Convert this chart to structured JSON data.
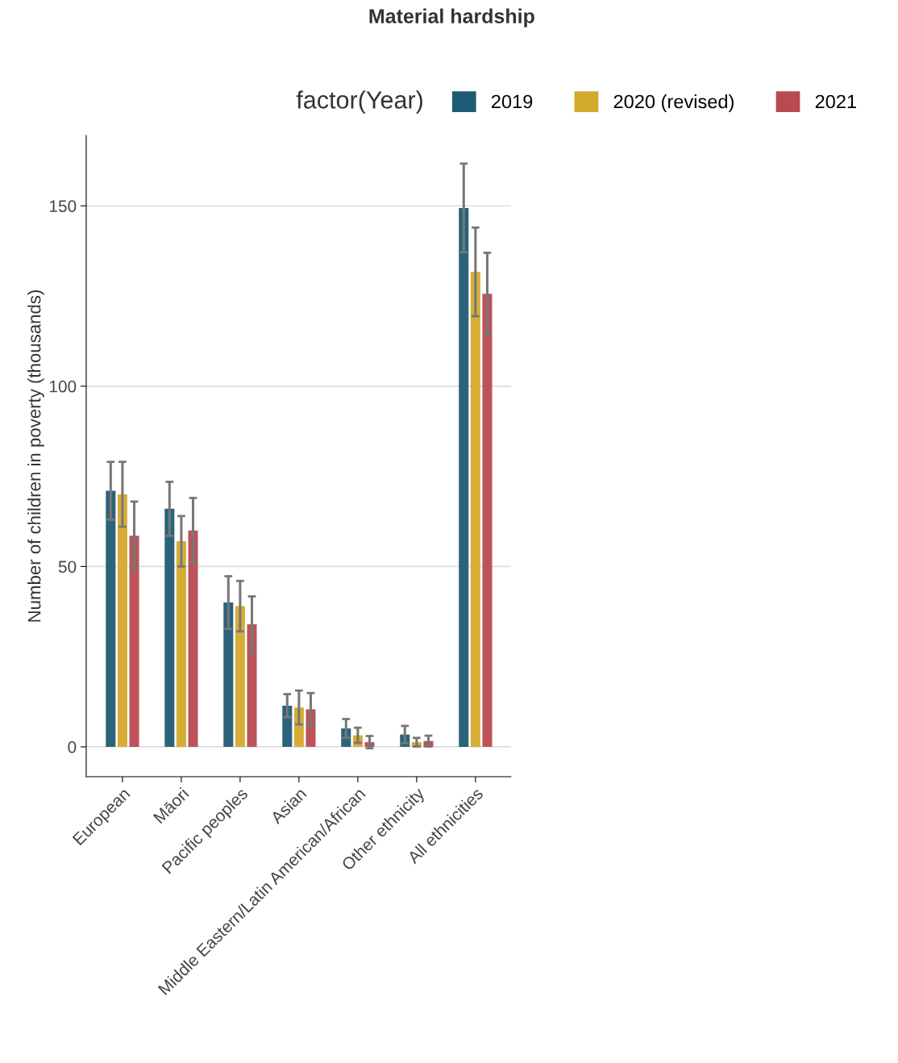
{
  "chart_data": {
    "type": "bar",
    "title": "Material hardship",
    "ylabel": "Number of children in poverty (thousands)",
    "legend_title": "factor(Year)",
    "categories": [
      "European",
      "Māori",
      "Pacific peoples",
      "Asian",
      "Middle Eastern/Latin American/African",
      "Other ethnicity",
      "All ethnicities"
    ],
    "series": [
      {
        "name": "2019",
        "color": "#1f5b73",
        "values": [
          71,
          66,
          40,
          11.4,
          5.1,
          3.4,
          149.4
        ],
        "errors": [
          8,
          7.5,
          7.3,
          3.2,
          2.6,
          2.4,
          12.3
        ]
      },
      {
        "name": "2020 (revised)",
        "color": "#d4aa2c",
        "values": [
          70,
          57,
          39,
          10.9,
          3.2,
          1.3,
          131.7
        ],
        "errors": [
          9,
          7,
          7,
          4.7,
          2.1,
          1.2,
          12.3
        ]
      },
      {
        "name": "2021",
        "color": "#b84a50",
        "values": [
          58.5,
          60,
          34,
          10.4,
          1.3,
          1.6,
          125.6
        ],
        "errors": [
          9.5,
          9,
          7.7,
          4.5,
          1.7,
          1.5,
          11.4
        ]
      }
    ],
    "ylim": [
      -8.3,
      169.5
    ],
    "yticks": [
      0,
      50,
      100,
      150
    ],
    "grid": "y",
    "legend": "top"
  }
}
